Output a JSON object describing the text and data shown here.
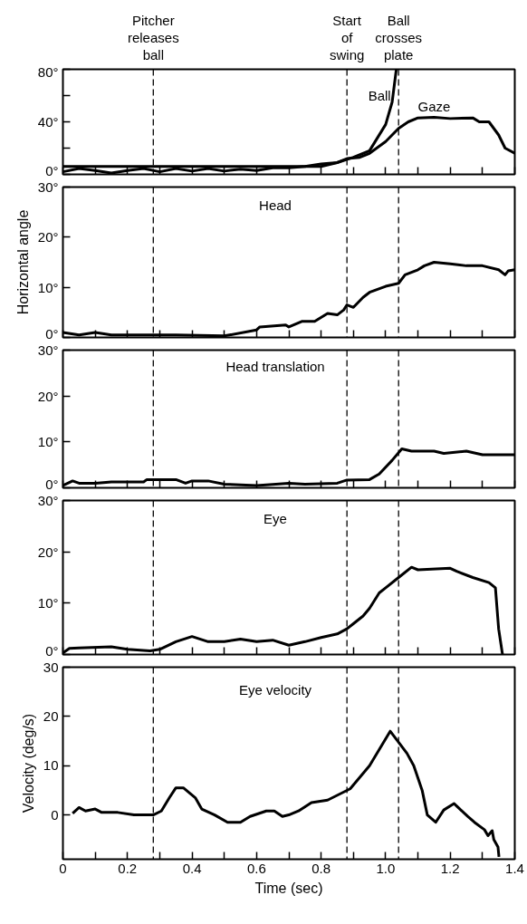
{
  "chart_data": [
    {
      "type": "line",
      "xlim": [
        0,
        1.4
      ],
      "ylim": [
        0,
        80
      ],
      "xticks": [
        0,
        0.1,
        0.2,
        0.3,
        0.4,
        0.5,
        0.6,
        0.7,
        0.8,
        0.9,
        1,
        1.1,
        1.2,
        1.3,
        1.4
      ],
      "yticks": [
        {
          "value": 0,
          "label": "0°"
        },
        {
          "value": 20,
          "label": null
        },
        {
          "value": 40,
          "label": "40°"
        },
        {
          "value": 60,
          "label": null
        },
        {
          "value": 80,
          "label": "80°"
        }
      ],
      "tick_labels": "y",
      "grid": false,
      "line_style": "solid",
      "series": [
        {
          "name": "Ball",
          "color": "#000000",
          "x": [
            0,
            0.8,
            0.85,
            0.9,
            0.95,
            1.0,
            1.02,
            1.033
          ],
          "values": [
            6,
            6,
            9,
            13,
            18,
            38,
            55,
            80
          ]
        },
        {
          "name": "Gaze",
          "color": "#000000",
          "x": [
            0,
            0.05,
            0.1,
            0.15,
            0.2,
            0.25,
            0.3,
            0.35,
            0.4,
            0.45,
            0.5,
            0.55,
            0.6,
            0.65,
            0.7,
            0.75,
            0.8,
            0.85,
            0.88,
            0.92,
            0.95,
            1.0,
            1.04,
            1.07,
            1.1,
            1.15,
            1.2,
            1.27,
            1.29,
            1.32,
            1.35,
            1.37,
            1.4
          ],
          "values": [
            2,
            4.5,
            3,
            1,
            3,
            4.5,
            2,
            4.5,
            2.5,
            4.5,
            2.5,
            4,
            3,
            5,
            5,
            6,
            8,
            9,
            12,
            13,
            16,
            25,
            35,
            40,
            43,
            43.5,
            42.5,
            43,
            40,
            40,
            30,
            20,
            16
          ]
        }
      ],
      "ref_lines": [
        {
          "axis": "x",
          "value": 0.28,
          "label": "Pitcher\nreleases\nball",
          "color": "#000000",
          "line_style": "dashed"
        },
        {
          "axis": "x",
          "value": 0.88,
          "label": "Start\nof\nswing",
          "color": "#000000",
          "line_style": "dashed"
        },
        {
          "axis": "x",
          "value": 1.04,
          "label": "Ball\ncrosses\nplate",
          "color": "#000000",
          "line_style": "dashed"
        }
      ]
    },
    {
      "type": "line",
      "ylabel": "Horizontal angle",
      "xlim": [
        0,
        1.4
      ],
      "ylim": [
        0,
        30
      ],
      "xticks": [
        0,
        0.1,
        0.2,
        0.3,
        0.4,
        0.5,
        0.6,
        0.7,
        0.8,
        0.9,
        1,
        1.1,
        1.2,
        1.3,
        1.4
      ],
      "yticks": [
        {
          "value": 0,
          "label": "0°"
        },
        {
          "value": 10,
          "label": "10°"
        },
        {
          "value": 20,
          "label": "20°"
        },
        {
          "value": 30,
          "label": "30°"
        }
      ],
      "tick_labels": "y",
      "grid": false,
      "line_style": "solid",
      "series": [
        {
          "name": "Head",
          "color": "#000000",
          "x": [
            0,
            0.05,
            0.1,
            0.15,
            0.2,
            0.28,
            0.35,
            0.5,
            0.6,
            0.61,
            0.69,
            0.7,
            0.74,
            0.78,
            0.82,
            0.85,
            0.87,
            0.88,
            0.9,
            0.93,
            0.95,
            1.0,
            1.04,
            1.06,
            1.1,
            1.12,
            1.15,
            1.2,
            1.25,
            1.3,
            1.35,
            1.37,
            1.38,
            1.4
          ],
          "values": [
            1,
            0.5,
            1,
            0.5,
            0.5,
            0.5,
            0.5,
            0.3,
            1.5,
            2.1,
            2.5,
            2.1,
            3.2,
            3.2,
            4.8,
            4.5,
            5.5,
            6.5,
            6,
            8,
            9,
            10.2,
            10.8,
            12.5,
            13.5,
            14.3,
            15,
            14.7,
            14.3,
            14.3,
            13.5,
            12.5,
            13.3,
            13.5
          ]
        }
      ],
      "ref_lines": [
        {
          "axis": "x",
          "value": 0.28,
          "color": "#000000",
          "line_style": "dashed"
        },
        {
          "axis": "x",
          "value": 0.88,
          "color": "#000000",
          "line_style": "dashed"
        },
        {
          "axis": "x",
          "value": 1.04,
          "color": "#000000",
          "line_style": "dashed"
        }
      ]
    },
    {
      "type": "line",
      "xlim": [
        0,
        1.4
      ],
      "ylim": [
        0,
        30
      ],
      "xticks": [
        0,
        0.1,
        0.2,
        0.3,
        0.4,
        0.5,
        0.6,
        0.7,
        0.8,
        0.9,
        1,
        1.1,
        1.2,
        1.3,
        1.4
      ],
      "yticks": [
        {
          "value": 0,
          "label": "0°"
        },
        {
          "value": 10,
          "label": "10°"
        },
        {
          "value": 20,
          "label": "20°"
        },
        {
          "value": 30,
          "label": "30°"
        }
      ],
      "tick_labels": "y",
      "grid": false,
      "line_style": "solid",
      "series": [
        {
          "name": "Head translation",
          "color": "#000000",
          "x": [
            0,
            0.03,
            0.05,
            0.1,
            0.15,
            0.25,
            0.26,
            0.35,
            0.38,
            0.4,
            0.45,
            0.5,
            0.6,
            0.7,
            0.75,
            0.85,
            0.88,
            0.95,
            0.98,
            1.02,
            1.05,
            1.08,
            1.15,
            1.18,
            1.25,
            1.3,
            1.4
          ],
          "values": [
            0.5,
            1.5,
            1,
            1,
            1.3,
            1.3,
            1.8,
            1.8,
            1,
            1.5,
            1.5,
            0.8,
            0.5,
            1,
            0.8,
            1,
            1.7,
            1.8,
            3,
            6,
            8.5,
            8,
            8,
            7.5,
            8,
            7.2,
            7.2
          ]
        }
      ],
      "ref_lines": [
        {
          "axis": "x",
          "value": 0.28,
          "color": "#000000",
          "line_style": "dashed"
        },
        {
          "axis": "x",
          "value": 0.88,
          "color": "#000000",
          "line_style": "dashed"
        },
        {
          "axis": "x",
          "value": 1.04,
          "color": "#000000",
          "line_style": "dashed"
        }
      ]
    },
    {
      "type": "line",
      "xlim": [
        0,
        1.4
      ],
      "ylim": [
        0,
        30
      ],
      "xticks": [
        0,
        0.1,
        0.2,
        0.3,
        0.4,
        0.5,
        0.6,
        0.7,
        0.8,
        0.9,
        1,
        1.1,
        1.2,
        1.3,
        1.4
      ],
      "yticks": [
        {
          "value": 0,
          "label": "0°"
        },
        {
          "value": 10,
          "label": "10°"
        },
        {
          "value": 20,
          "label": "20°"
        },
        {
          "value": 30,
          "label": "30°"
        }
      ],
      "tick_labels": "y",
      "grid": false,
      "line_style": "solid",
      "series": [
        {
          "name": "Eye",
          "color": "#000000",
          "x": [
            0,
            0.02,
            0.05,
            0.15,
            0.2,
            0.27,
            0.3,
            0.35,
            0.4,
            0.45,
            0.5,
            0.55,
            0.6,
            0.65,
            0.7,
            0.75,
            0.8,
            0.85,
            0.88,
            0.9,
            0.93,
            0.95,
            0.98,
            1.0,
            1.04,
            1.08,
            1.1,
            1.2,
            1.22,
            1.27,
            1.32,
            1.34,
            1.35,
            1.362
          ],
          "values": [
            0.3,
            1.2,
            1.3,
            1.5,
            1,
            0.7,
            1,
            2.5,
            3.5,
            2.5,
            2.5,
            3,
            2.5,
            2.8,
            1.8,
            2.5,
            3.3,
            4,
            5,
            6,
            7.5,
            9,
            12,
            13,
            15,
            17,
            16.5,
            16.8,
            16.2,
            15,
            14,
            13,
            5,
            0
          ]
        }
      ],
      "ref_lines": [
        {
          "axis": "x",
          "value": 0.28,
          "color": "#000000",
          "line_style": "dashed"
        },
        {
          "axis": "x",
          "value": 0.88,
          "color": "#000000",
          "line_style": "dashed"
        },
        {
          "axis": "x",
          "value": 1.04,
          "color": "#000000",
          "line_style": "dashed"
        }
      ]
    },
    {
      "type": "line",
      "xlabel": "Time (sec)",
      "ylabel": "Velocity (deg/s)",
      "xlim": [
        0,
        1.4
      ],
      "ylim": [
        -9,
        30
      ],
      "xticks": [
        0,
        {
          "value": 0.1,
          "label": null
        },
        0.2,
        {
          "value": 0.3,
          "label": null
        },
        0.4,
        {
          "value": 0.5,
          "label": null
        },
        0.6,
        {
          "value": 0.7,
          "label": null
        },
        0.8,
        {
          "value": 0.9,
          "label": null
        },
        {
          "value": 1,
          "label": "1.0"
        },
        {
          "value": 1.1,
          "label": null
        },
        1.2,
        {
          "value": 1.3,
          "label": null
        },
        1.4
      ],
      "yticks": [
        0,
        10,
        20,
        30
      ],
      "grid": false,
      "series": [
        {
          "name": "Eye velocity",
          "color": "#000000",
          "x": [
            0.03,
            0.05,
            0.07,
            0.1,
            0.12,
            0.17,
            0.22,
            0.28,
            0.305,
            0.33,
            0.35,
            0.373,
            0.41,
            0.43,
            0.47,
            0.51,
            0.55,
            0.58,
            0.63,
            0.655,
            0.68,
            0.7,
            0.73,
            0.77,
            0.82,
            0.89,
            0.95,
            1.014,
            1.066,
            1.087,
            1.113,
            1.129,
            1.155,
            1.18,
            1.212,
            1.254,
            1.275,
            1.306,
            1.317,
            1.33,
            1.335,
            1.348,
            1.351
          ],
          "values": [
            0.3,
            1.5,
            0.8,
            1.2,
            0.5,
            0.5,
            0,
            0,
            0.8,
            3.5,
            5.5,
            5.5,
            3.5,
            1.2,
            0,
            -1.5,
            -1.5,
            -0.3,
            0.8,
            0.8,
            -0.3,
            0,
            0.8,
            2.5,
            3,
            5.3,
            10,
            17,
            12.5,
            10,
            5,
            0,
            -1.5,
            1,
            2.3,
            -0.3,
            -1.5,
            -3,
            -4.2,
            -3.2,
            -5,
            -6.5,
            -8.5
          ]
        }
      ],
      "ref_lines": [
        {
          "axis": "x",
          "value": 0.28,
          "color": "#000000",
          "line_style": "dashed"
        },
        {
          "axis": "x",
          "value": 0.88,
          "color": "#000000",
          "line_style": "dashed"
        },
        {
          "axis": "x",
          "value": 1.04,
          "color": "#000000",
          "line_style": "dashed"
        }
      ]
    }
  ]
}
